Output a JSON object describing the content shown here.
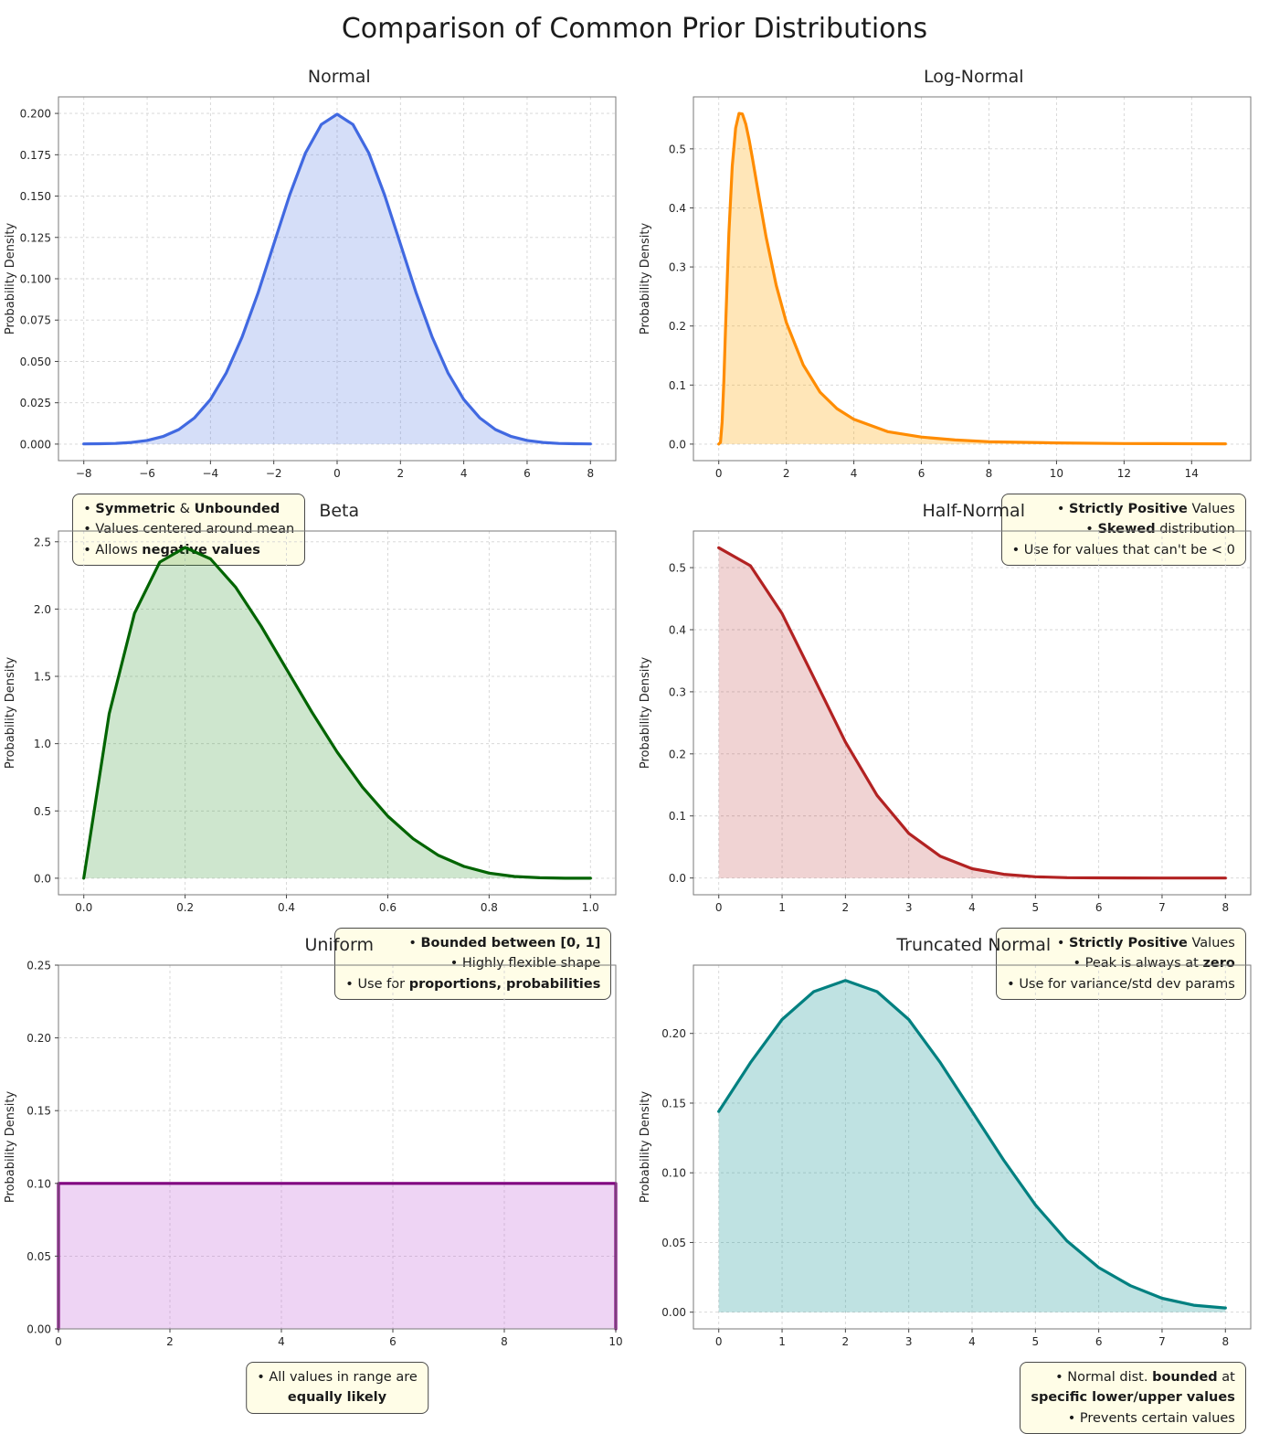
{
  "page_title": "Comparison of Common Prior Distributions",
  "chart_data": [
    {
      "type": "area",
      "title": "Normal",
      "ylabel": "Probability Density",
      "color": "#4169e1",
      "fill": "rgba(65,105,225,0.22)",
      "xlim": [
        -8.8,
        8.8
      ],
      "ylim": [
        -0.01,
        0.21
      ],
      "xticks": [
        -8,
        -6,
        -4,
        -2,
        0,
        2,
        4,
        6,
        8
      ],
      "yticks": [
        0,
        0.025,
        0.05,
        0.075,
        0.1,
        0.125,
        0.15,
        0.175,
        0.2
      ],
      "xtick_decimals": 0,
      "ytick_decimals": 3,
      "x": [
        -8,
        -7.5,
        -7,
        -6.5,
        -6,
        -5.5,
        -5,
        -4.5,
        -4,
        -3.5,
        -3,
        -2.5,
        -2,
        -1.5,
        -1,
        -0.5,
        0,
        0.5,
        1,
        1.5,
        2,
        2.5,
        3,
        3.5,
        4,
        4.5,
        5,
        5.5,
        6,
        6.5,
        7,
        7.5,
        8
      ],
      "y": [
        0.0001,
        0.0002,
        0.0004,
        0.001,
        0.0022,
        0.0046,
        0.0088,
        0.0159,
        0.027,
        0.0431,
        0.0648,
        0.0913,
        0.121,
        0.1506,
        0.176,
        0.1933,
        0.1995,
        0.1933,
        0.176,
        0.1506,
        0.121,
        0.0913,
        0.0648,
        0.0431,
        0.027,
        0.0159,
        0.0088,
        0.0046,
        0.0022,
        0.001,
        0.0004,
        0.0002,
        0.0001
      ],
      "annotation": {
        "align": "left",
        "anchor": "left",
        "fx": 0.025,
        "fy": 0.015,
        "lines": [
          [
            {
              "t": "• ",
              "b": false
            },
            {
              "t": "Symmetric",
              "b": true
            },
            {
              "t": " & ",
              "b": false
            },
            {
              "t": "Unbounded",
              "b": true
            }
          ],
          [
            {
              "t": "• Values centered around mean",
              "b": false
            }
          ],
          [
            {
              "t": "• Allows ",
              "b": false
            },
            {
              "t": "negative values",
              "b": true
            }
          ]
        ]
      }
    },
    {
      "type": "area",
      "title": "Log-Normal",
      "ylabel": "Probability Density",
      "color": "#ff8c00",
      "fill": "rgba(255,165,0,0.28)",
      "xlim": [
        -0.75,
        15.75
      ],
      "ylim": [
        -0.028,
        0.588
      ],
      "xticks": [
        0,
        2,
        4,
        6,
        8,
        10,
        12,
        14
      ],
      "yticks": [
        0,
        0.1,
        0.2,
        0.3,
        0.4,
        0.5
      ],
      "xtick_decimals": 0,
      "ytick_decimals": 1,
      "x": [
        0,
        0.05,
        0.1,
        0.15,
        0.2,
        0.3,
        0.4,
        0.5,
        0.6,
        0.7,
        0.8,
        0.9,
        1.0,
        1.2,
        1.4,
        1.7,
        2.0,
        2.5,
        3.0,
        3.5,
        4.0,
        5.0,
        6.0,
        7.0,
        8.0,
        10.0,
        12.0,
        15.0
      ],
      "y": [
        0,
        0.003,
        0.037,
        0.107,
        0.194,
        0.357,
        0.471,
        0.535,
        0.56,
        0.559,
        0.542,
        0.515,
        0.483,
        0.416,
        0.351,
        0.269,
        0.206,
        0.134,
        0.088,
        0.06,
        0.042,
        0.021,
        0.012,
        0.007,
        0.004,
        0.002,
        0.001,
        0.0005
      ],
      "annotation": {
        "align": "right",
        "anchor": "right",
        "fx": 0.985,
        "fy": 0.015,
        "lines": [
          [
            {
              "t": "• ",
              "b": false
            },
            {
              "t": "Strictly Positive",
              "b": true
            },
            {
              "t": " Values",
              "b": false
            }
          ],
          [
            {
              "t": "• ",
              "b": false
            },
            {
              "t": "Skewed",
              "b": true
            },
            {
              "t": " distribution",
              "b": false
            }
          ],
          [
            {
              "t": "• Use for values that can't be < 0",
              "b": false
            }
          ]
        ]
      }
    },
    {
      "type": "area",
      "title": "Beta",
      "ylabel": "Probability Density",
      "color": "#006400",
      "fill": "rgba(34,139,34,0.22)",
      "xlim": [
        -0.05,
        1.05
      ],
      "ylim": [
        -0.123,
        2.58
      ],
      "xticks": [
        0,
        0.2,
        0.4,
        0.6,
        0.8,
        1.0
      ],
      "yticks": [
        0,
        0.5,
        1.0,
        1.5,
        2.0,
        2.5
      ],
      "xtick_decimals": 1,
      "ytick_decimals": 1,
      "x": [
        0,
        0.05,
        0.1,
        0.15,
        0.2,
        0.25,
        0.3,
        0.35,
        0.4,
        0.45,
        0.5,
        0.55,
        0.6,
        0.65,
        0.7,
        0.75,
        0.8,
        0.85,
        0.9,
        0.95,
        1.0
      ],
      "y": [
        0,
        1.222,
        1.968,
        2.349,
        2.458,
        2.373,
        2.161,
        1.874,
        1.555,
        1.235,
        0.938,
        0.677,
        0.461,
        0.293,
        0.17,
        0.088,
        0.038,
        0.013,
        0.003,
        0.0002,
        0
      ],
      "annotation": {
        "align": "right",
        "anchor": "right",
        "fx": 0.985,
        "fy": 0.02,
        "lines": [
          [
            {
              "t": "• ",
              "b": false
            },
            {
              "t": "Bounded between [0, 1]",
              "b": true
            }
          ],
          [
            {
              "t": "• Highly flexible shape",
              "b": false
            }
          ],
          [
            {
              "t": "• Use for ",
              "b": false
            },
            {
              "t": "proportions, probabilities",
              "b": true
            }
          ]
        ]
      }
    },
    {
      "type": "area",
      "title": "Half-Normal",
      "ylabel": "Probability Density",
      "color": "#b22222",
      "fill": "rgba(178,34,34,0.2)",
      "xlim": [
        -0.4,
        8.4
      ],
      "ylim": [
        -0.027,
        0.559
      ],
      "xticks": [
        0,
        1,
        2,
        3,
        4,
        5,
        6,
        7,
        8
      ],
      "yticks": [
        0,
        0.1,
        0.2,
        0.3,
        0.4,
        0.5
      ],
      "xtick_decimals": 0,
      "ytick_decimals": 1,
      "x": [
        0,
        0.5,
        1,
        1.5,
        2,
        2.5,
        3,
        3.5,
        4,
        4.5,
        5,
        5.5,
        6,
        6.5,
        7,
        7.5,
        8
      ],
      "y": [
        0.532,
        0.503,
        0.426,
        0.323,
        0.219,
        0.133,
        0.072,
        0.035,
        0.015,
        0.006,
        0.002,
        0.0006,
        0.0002,
        0.0001,
        0,
        0,
        0
      ],
      "annotation": {
        "align": "right",
        "anchor": "right",
        "fx": 0.985,
        "fy": 0.02,
        "lines": [
          [
            {
              "t": "• ",
              "b": false
            },
            {
              "t": "Strictly Positive",
              "b": true
            },
            {
              "t": " Values",
              "b": false
            }
          ],
          [
            {
              "t": "• Peak is always at ",
              "b": false
            },
            {
              "t": "zero",
              "b": true
            }
          ],
          [
            {
              "t": "• Use for variance/std dev params",
              "b": false
            }
          ]
        ]
      }
    },
    {
      "type": "area",
      "title": "Uniform",
      "ylabel": "Probability Density",
      "color": "#800080",
      "fill": "rgba(186,85,211,0.25)",
      "xlim": [
        0,
        10
      ],
      "ylim": [
        0,
        0.25
      ],
      "xticks": [
        0,
        2,
        4,
        6,
        8,
        10
      ],
      "yticks": [
        0,
        0.05,
        0.1,
        0.15,
        0.2,
        0.25
      ],
      "xtick_decimals": 0,
      "ytick_decimals": 2,
      "x": [
        0,
        0,
        10,
        10
      ],
      "y": [
        0,
        0.1,
        0.1,
        0
      ],
      "annotation": {
        "align": "center",
        "anchor": "center",
        "fx": 0.5,
        "fy": 0.44,
        "lines": [
          [
            {
              "t": "• All values in range are",
              "b": false
            }
          ],
          [
            {
              "t": "equally likely",
              "b": true
            }
          ]
        ]
      }
    },
    {
      "type": "area",
      "title": "Truncated Normal",
      "ylabel": "Probability Density",
      "color": "#008080",
      "fill": "rgba(0,139,139,0.25)",
      "xlim": [
        -0.4,
        8.4
      ],
      "ylim": [
        -0.012,
        0.249
      ],
      "xticks": [
        0,
        1,
        2,
        3,
        4,
        5,
        6,
        7,
        8
      ],
      "yticks": [
        0,
        0.05,
        0.1,
        0.15,
        0.2
      ],
      "xtick_decimals": 0,
      "ytick_decimals": 2,
      "x": [
        0,
        0.5,
        1,
        1.5,
        2,
        2.5,
        3,
        3.5,
        4,
        4.5,
        5,
        5.5,
        6,
        6.5,
        7,
        7.5,
        8
      ],
      "y": [
        0.144,
        0.179,
        0.21,
        0.23,
        0.238,
        0.23,
        0.21,
        0.179,
        0.144,
        0.109,
        0.077,
        0.051,
        0.032,
        0.019,
        0.01,
        0.005,
        0.003
      ],
      "annotation": {
        "align": "right",
        "anchor": "right",
        "fx": 0.985,
        "fy": 0.02,
        "lines": [
          [
            {
              "t": "• Normal dist. ",
              "b": false
            },
            {
              "t": "bounded",
              "b": true
            },
            {
              "t": " at",
              "b": false
            }
          ],
          [
            {
              "t": "specific lower/upper values",
              "b": true
            }
          ],
          [
            {
              "t": "• Prevents certain values",
              "b": false
            }
          ]
        ]
      }
    }
  ]
}
